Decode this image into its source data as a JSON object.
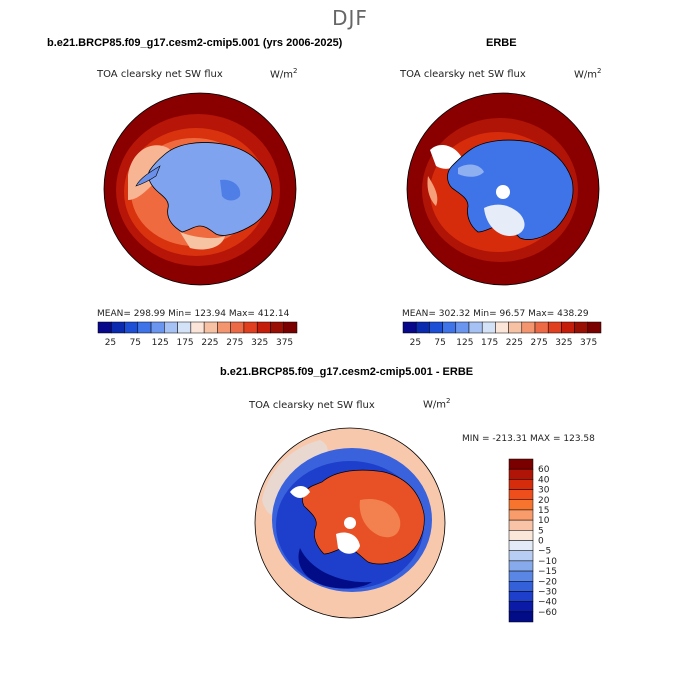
{
  "page": {
    "season": "DJF"
  },
  "panels": [
    {
      "title": "b.e21.BRCP85.f09_g17.cesm2-cmip5.001 (yrs 2006-2025)",
      "variable": "TOA clearsky net SW flux",
      "units_base": "W/m",
      "units_sup": "2",
      "stats_text": "MEAN= 298.99   Min= 123.94   Max= 412.14"
    },
    {
      "title": "ERBE",
      "variable": "TOA clearsky net SW flux",
      "units_base": "W/m",
      "units_sup": "2",
      "stats_text": "MEAN= 302.32   Min=  96.57   Max= 438.29"
    },
    {
      "title": "b.e21.BRCP85.f09_g17.cesm2-cmip5.001 - ERBE",
      "variable": "TOA clearsky net SW flux",
      "units_base": "W/m",
      "units_sup": "2",
      "stats_text": "MIN = -213.31  MAX = 123.58"
    }
  ],
  "colors": {
    "seq_scale": [
      "#08088a",
      "#0a2bb0",
      "#1c4ed6",
      "#3f73e8",
      "#6b96ef",
      "#a6c1f3",
      "#d4e2f8",
      "#fbe5d8",
      "#f7c1a4",
      "#f3956f",
      "#ec6a45",
      "#e0401f",
      "#c41e0b",
      "#9a0f04",
      "#7a0000"
    ],
    "diff_scale": [
      "#7a0000",
      "#b01407",
      "#d62c0c",
      "#ee4e1c",
      "#f7742f",
      "#f79c6a",
      "#f8c3a6",
      "#fbe7da",
      "#e3eaf8",
      "#b8cdf3",
      "#86aaec",
      "#5a86e6",
      "#3460da",
      "#1d3fcb",
      "#0b1ba8",
      "#020c86"
    ],
    "ocean_outer": "#8a0000",
    "coast": "#000000"
  },
  "chart_data": [
    {
      "type": "heatmap",
      "projection": "south-polar-stereographic",
      "title": "b.e21.BRCP85.f09_g17.cesm2-cmip5.001 (yrs 2006-2025)",
      "variable": "TOA clearsky net SW flux",
      "units": "W/m2",
      "mean": 298.99,
      "min": 123.94,
      "max": 412.14,
      "colorbar_ticks": [
        25,
        75,
        125,
        175,
        225,
        275,
        325,
        375
      ],
      "colorbar_range": [
        0,
        400
      ],
      "approx_field": {
        "antarctica": 150,
        "sea_ice_zone": 240,
        "open_ocean": 400
      }
    },
    {
      "type": "heatmap",
      "projection": "south-polar-stereographic",
      "title": "ERBE",
      "variable": "TOA clearsky net SW flux",
      "units": "W/m2",
      "mean": 302.32,
      "min": 96.57,
      "max": 438.29,
      "colorbar_ticks": [
        25,
        75,
        125,
        175,
        225,
        275,
        325,
        375
      ],
      "colorbar_range": [
        0,
        400
      ],
      "approx_field": {
        "antarctica": 135,
        "sea_ice_zone": 310,
        "open_ocean": 410
      }
    },
    {
      "type": "heatmap",
      "projection": "south-polar-stereographic",
      "title": "b.e21.BRCP85.f09_g17.cesm2-cmip5.001 - ERBE",
      "variable": "TOA clearsky net SW flux",
      "units": "W/m2",
      "min": -213.31,
      "max": 123.58,
      "colorbar_levels": [
        60,
        40,
        30,
        20,
        15,
        10,
        5,
        0,
        -5,
        -10,
        -15,
        -20,
        -30,
        -40,
        -60
      ],
      "approx_field": {
        "antarctica": 30,
        "sea_ice_ring": -60,
        "midlatitudes": 5
      }
    }
  ]
}
